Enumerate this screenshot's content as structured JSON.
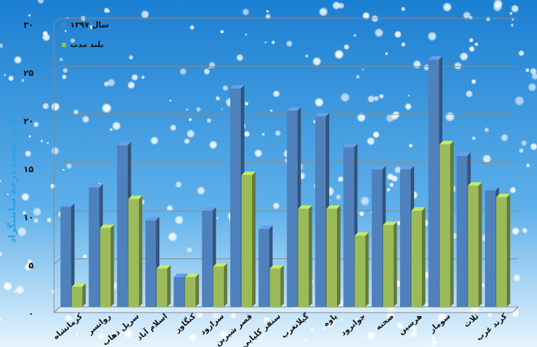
{
  "chart_data": {
    "type": "bar3d",
    "y_axis_title": "دما بر حسب درجه سانتیگراد",
    "categories": [
      "کرمانشاه",
      "روانسر",
      "سرپل ذهاب",
      "اسلام آباد",
      "کنگاور",
      "سرارود",
      "قصر شیرین",
      "سنقر کلیایی",
      "گیلانغرب",
      "پاوه",
      "جوانرود",
      "صحنه",
      "هرسین",
      "سومار",
      "ثلاث",
      "کرند غرب"
    ],
    "series": [
      {
        "name": "سال ۱۳۹۷",
        "color": "#4f81bd",
        "values": [
          10.4,
          12.4,
          16.8,
          9.0,
          3.1,
          10.0,
          22.7,
          8.1,
          20.4,
          19.8,
          16.6,
          14.3,
          14.3,
          25.7,
          15.7,
          12.1
        ]
      },
      {
        "name": "بلند مدت",
        "color": "#9bbb59",
        "values": [
          2.1,
          8.2,
          11.2,
          4.0,
          3.1,
          4.2,
          13.7,
          4.0,
          10.2,
          10.2,
          7.4,
          8.5,
          10.0,
          16.9,
          12.6,
          11.4
        ]
      }
    ],
    "ylim": [
      0,
      30
    ],
    "yticks": [
      {
        "value": 0,
        "label": "۰"
      },
      {
        "value": 5,
        "label": "۵"
      },
      {
        "value": 10,
        "label": "۱۰"
      },
      {
        "value": 15,
        "label": "۱۵"
      },
      {
        "value": 20,
        "label": "۲۰"
      },
      {
        "value": 25,
        "label": "۲۵"
      },
      {
        "value": 30,
        "label": "۳۰"
      }
    ],
    "grid": true
  }
}
